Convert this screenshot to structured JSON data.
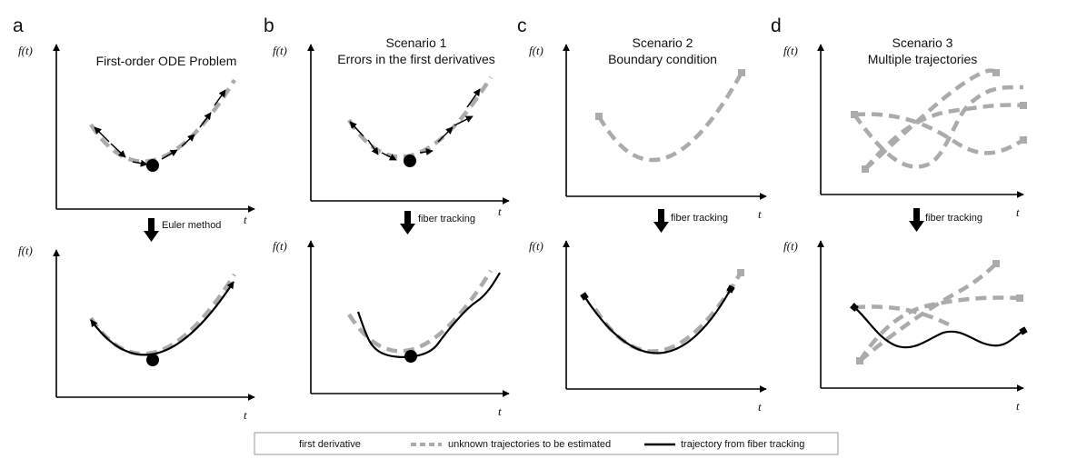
{
  "panels": [
    {
      "letter": "a",
      "title": [
        "First-order ODE Problem"
      ],
      "step": "Euler method"
    },
    {
      "letter": "b",
      "title": [
        "Scenario 1",
        "Errors in the first derivatives"
      ],
      "step": "fiber tracking"
    },
    {
      "letter": "c",
      "title": [
        "Scenario 2",
        "Boundary condition"
      ],
      "step": "fiber tracking"
    },
    {
      "letter": "d",
      "title": [
        "Scenario 3",
        "Multiple trajectories"
      ],
      "step": "fiber tracking"
    }
  ],
  "axes": {
    "y": "f(t)",
    "x": "t"
  },
  "legend": {
    "first_derivative": "first derivative",
    "unknown": "unknown trajectories to be estimated",
    "fiber": "trajectory from fiber tracking"
  },
  "colors": {
    "dashed_gray": "#ababab",
    "black": "#000000"
  }
}
